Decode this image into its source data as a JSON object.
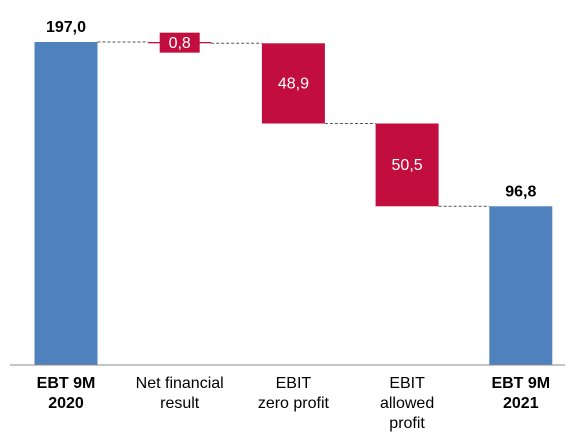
{
  "chart_data": {
    "type": "waterfall",
    "categories": [
      "EBT 9M\n2020",
      "Net financial\nresult",
      "EBIT\nzero profit",
      "EBIT\nallowed\nprofit",
      "EBT 9M\n2021"
    ],
    "kinds": [
      "total",
      "decrease",
      "decrease",
      "decrease",
      "total"
    ],
    "values": [
      197.0,
      0.8,
      48.9,
      50.5,
      96.8
    ],
    "value_labels": [
      "197,0",
      "0,8",
      "48,9",
      "50,5",
      "96,8"
    ],
    "colors": {
      "total": "#4f81bd",
      "decrease": "#c20e3e"
    }
  }
}
